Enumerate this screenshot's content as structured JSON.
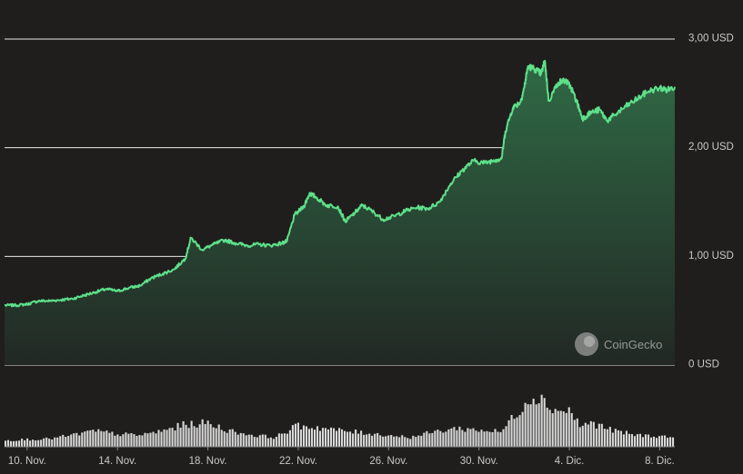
{
  "chart_data": {
    "type": "area",
    "currency_unit": "USD",
    "y_ticks": [
      {
        "value": 3.0,
        "label": "3,00 USD"
      },
      {
        "value": 2.0,
        "label": "2,00 USD"
      },
      {
        "value": 1.0,
        "label": "1,00 USD"
      },
      {
        "value": 0.0,
        "label": "0 USD"
      }
    ],
    "ylim": [
      0,
      3.0
    ],
    "xlim": [
      "2023-11-09",
      "2023-12-08T16:00"
    ],
    "x_ticks": [
      {
        "date": "2023-11-10",
        "label": "10. Nov."
      },
      {
        "date": "2023-11-14",
        "label": "14. Nov."
      },
      {
        "date": "2023-11-18",
        "label": "18. Nov."
      },
      {
        "date": "2023-11-22",
        "label": "22. Nov."
      },
      {
        "date": "2023-11-26",
        "label": "26. Nov."
      },
      {
        "date": "2023-11-30",
        "label": "30. Nov."
      },
      {
        "date": "2023-12-04",
        "label": "4. Dic."
      },
      {
        "date": "2023-12-08",
        "label": "8. Dic."
      }
    ],
    "series": [
      {
        "points": [
          [
            "2023-11-09T00:00",
            0.55
          ],
          [
            "2023-11-09T12:00",
            0.55
          ],
          [
            "2023-11-10T00:00",
            0.56
          ],
          [
            "2023-11-10T12:00",
            0.59
          ],
          [
            "2023-11-11T00:00",
            0.59
          ],
          [
            "2023-11-11T12:00",
            0.6
          ],
          [
            "2023-11-12T00:00",
            0.61
          ],
          [
            "2023-11-12T12:00",
            0.64
          ],
          [
            "2023-11-13T00:00",
            0.67
          ],
          [
            "2023-11-13T12:00",
            0.7
          ],
          [
            "2023-11-14T00:00",
            0.68
          ],
          [
            "2023-11-14T12:00",
            0.71
          ],
          [
            "2023-11-15T00:00",
            0.73
          ],
          [
            "2023-11-15T12:00",
            0.8
          ],
          [
            "2023-11-16T00:00",
            0.84
          ],
          [
            "2023-11-16T12:00",
            0.88
          ],
          [
            "2023-11-17T00:00",
            0.98
          ],
          [
            "2023-11-17T06:00",
            1.17
          ],
          [
            "2023-11-17T18:00",
            1.06
          ],
          [
            "2023-11-18T06:00",
            1.11
          ],
          [
            "2023-11-18T18:00",
            1.15
          ],
          [
            "2023-11-19T06:00",
            1.12
          ],
          [
            "2023-11-19T18:00",
            1.1
          ],
          [
            "2023-11-20T06:00",
            1.11
          ],
          [
            "2023-11-20T18:00",
            1.1
          ],
          [
            "2023-11-21T06:00",
            1.12
          ],
          [
            "2023-11-21T12:00",
            1.14
          ],
          [
            "2023-11-21T20:00",
            1.38
          ],
          [
            "2023-11-22T06:00",
            1.46
          ],
          [
            "2023-11-22T12:00",
            1.58
          ],
          [
            "2023-11-22T18:00",
            1.55
          ],
          [
            "2023-11-23T06:00",
            1.47
          ],
          [
            "2023-11-23T18:00",
            1.46
          ],
          [
            "2023-11-24T02:00",
            1.32
          ],
          [
            "2023-11-24T12:00",
            1.4
          ],
          [
            "2023-11-24T20:00",
            1.47
          ],
          [
            "2023-11-25T06:00",
            1.42
          ],
          [
            "2023-11-25T18:00",
            1.34
          ],
          [
            "2023-11-26T06:00",
            1.37
          ],
          [
            "2023-11-26T18:00",
            1.42
          ],
          [
            "2023-11-27T06:00",
            1.45
          ],
          [
            "2023-11-27T18:00",
            1.44
          ],
          [
            "2023-11-28T06:00",
            1.5
          ],
          [
            "2023-11-28T18:00",
            1.67
          ],
          [
            "2023-11-29T06:00",
            1.79
          ],
          [
            "2023-11-29T18:00",
            1.88
          ],
          [
            "2023-11-30T06:00",
            1.86
          ],
          [
            "2023-11-30T18:00",
            1.89
          ],
          [
            "2023-12-01T00:00",
            1.9
          ],
          [
            "2023-12-01T04:00",
            2.15
          ],
          [
            "2023-12-01T12:00",
            2.37
          ],
          [
            "2023-12-01T20:00",
            2.42
          ],
          [
            "2023-12-02T00:00",
            2.55
          ],
          [
            "2023-12-02T04:00",
            2.75
          ],
          [
            "2023-12-02T12:00",
            2.72
          ],
          [
            "2023-12-02T18:00",
            2.68
          ],
          [
            "2023-12-02T22:00",
            2.8
          ],
          [
            "2023-12-03T02:00",
            2.43
          ],
          [
            "2023-12-03T12:00",
            2.6
          ],
          [
            "2023-12-03T20:00",
            2.62
          ],
          [
            "2023-12-04T02:00",
            2.55
          ],
          [
            "2023-12-04T08:00",
            2.42
          ],
          [
            "2023-12-04T14:00",
            2.27
          ],
          [
            "2023-12-04T22:00",
            2.32
          ],
          [
            "2023-12-05T08:00",
            2.35
          ],
          [
            "2023-12-05T16:00",
            2.25
          ],
          [
            "2023-12-06T00:00",
            2.3
          ],
          [
            "2023-12-06T12:00",
            2.38
          ],
          [
            "2023-12-07T00:00",
            2.45
          ],
          [
            "2023-12-07T12:00",
            2.52
          ],
          [
            "2023-12-08T00:00",
            2.55
          ],
          [
            "2023-12-08T08:00",
            2.53
          ],
          [
            "2023-12-08T16:00",
            2.56
          ]
        ]
      }
    ],
    "volume_series": [
      [
        "2023-11-09T00:00",
        0.12
      ],
      [
        "2023-11-10T00:00",
        0.14
      ],
      [
        "2023-11-11T00:00",
        0.15
      ],
      [
        "2023-11-12T00:00",
        0.22
      ],
      [
        "2023-11-13T00:00",
        0.3
      ],
      [
        "2023-11-14T00:00",
        0.24
      ],
      [
        "2023-11-15T00:00",
        0.22
      ],
      [
        "2023-11-16T00:00",
        0.3
      ],
      [
        "2023-11-17T00:00",
        0.42
      ],
      [
        "2023-11-18T00:00",
        0.45
      ],
      [
        "2023-11-19T00:00",
        0.3
      ],
      [
        "2023-11-20T00:00",
        0.22
      ],
      [
        "2023-11-21T00:00",
        0.18
      ],
      [
        "2023-11-22T00:00",
        0.4
      ],
      [
        "2023-11-23T00:00",
        0.36
      ],
      [
        "2023-11-24T00:00",
        0.3
      ],
      [
        "2023-11-25T00:00",
        0.26
      ],
      [
        "2023-11-26T00:00",
        0.22
      ],
      [
        "2023-11-27T00:00",
        0.18
      ],
      [
        "2023-11-28T00:00",
        0.28
      ],
      [
        "2023-11-29T00:00",
        0.35
      ],
      [
        "2023-11-30T00:00",
        0.32
      ],
      [
        "2023-12-01T00:00",
        0.28
      ],
      [
        "2023-12-01T12:00",
        0.55
      ],
      [
        "2023-12-02T00:00",
        0.8
      ],
      [
        "2023-12-02T12:00",
        1.0
      ],
      [
        "2023-12-03T00:00",
        0.82
      ],
      [
        "2023-12-03T12:00",
        0.68
      ],
      [
        "2023-12-04T00:00",
        0.7
      ],
      [
        "2023-12-04T12:00",
        0.4
      ],
      [
        "2023-12-05T00:00",
        0.45
      ],
      [
        "2023-12-05T12:00",
        0.38
      ],
      [
        "2023-12-06T00:00",
        0.3
      ],
      [
        "2023-12-07T00:00",
        0.22
      ],
      [
        "2023-12-08T00:00",
        0.2
      ],
      [
        "2023-12-08T16:00",
        0.18
      ]
    ],
    "grid": true,
    "colors": {
      "line": "#5ee08a",
      "area_top": "#2f6a45",
      "area_bottom": "#222824",
      "grid": "#e8e8e8",
      "volume": "#d9d9d9",
      "background": "#1f1e1d"
    }
  },
  "watermark": {
    "text": "CoinGecko",
    "icon": "coingecko-gecko-icon"
  }
}
